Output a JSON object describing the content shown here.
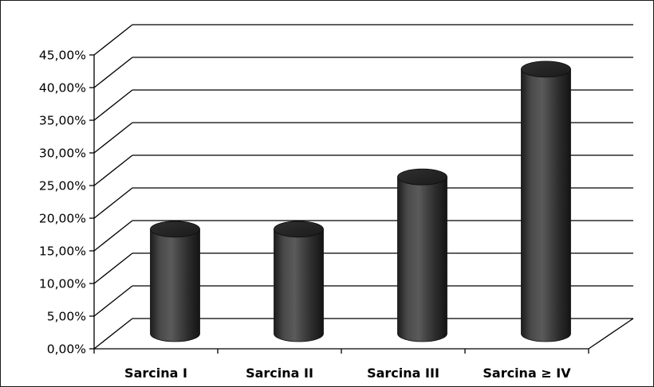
{
  "chart_data": {
    "type": "bar",
    "style": "3d-cylinder",
    "categories": [
      "Sarcina I",
      "Sarcina II",
      "Sarcina III",
      "Sarcina ≥ IV"
    ],
    "series": [
      {
        "values": [
          16.0,
          16.0,
          24.0,
          40.5
        ],
        "color": "#3a3a3a"
      }
    ],
    "y_ticks": [
      "0,00%",
      "5,00%",
      "10,00%",
      "15,00%",
      "20,00%",
      "25,00%",
      "30,00%",
      "35,00%",
      "40,00%",
      "45,00%"
    ],
    "ylim": [
      0,
      45
    ],
    "grid": true,
    "legend": "none"
  }
}
